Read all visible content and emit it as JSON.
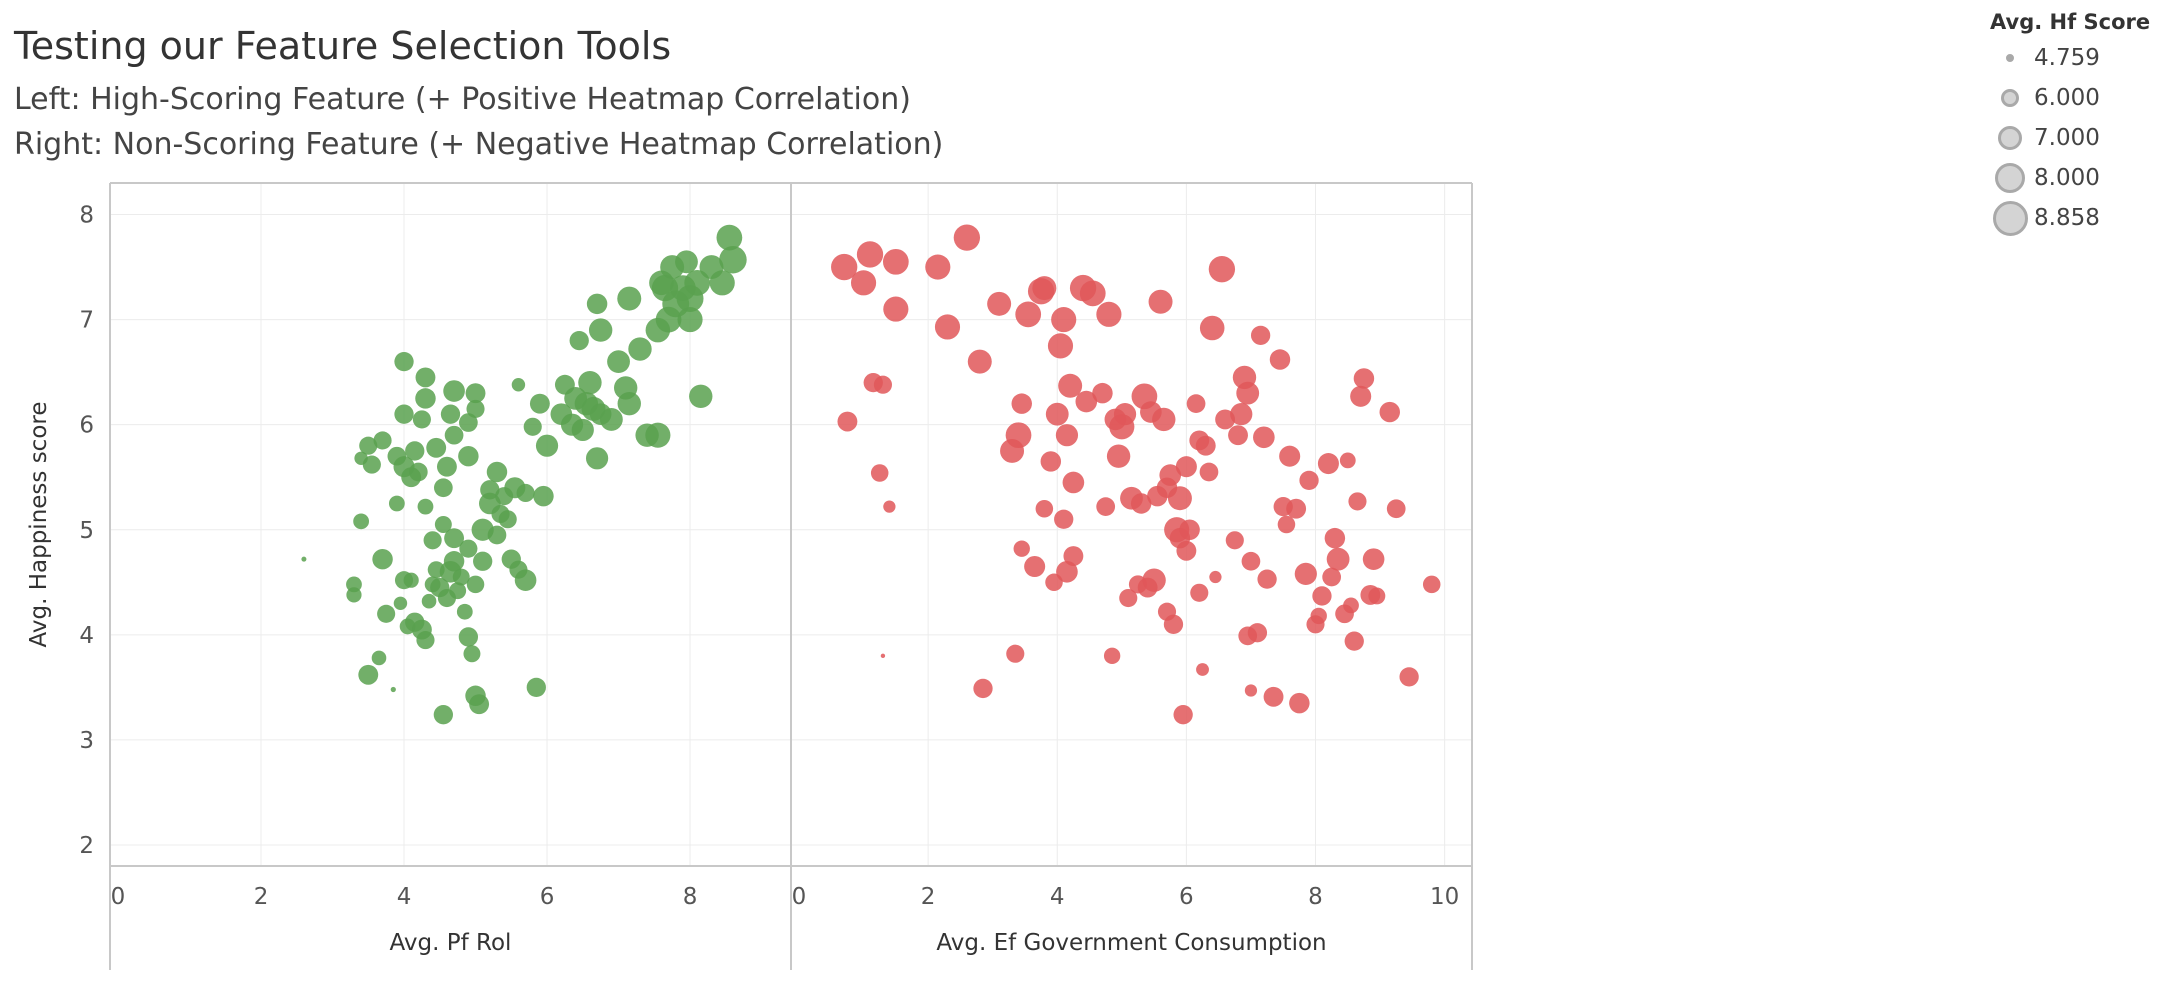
{
  "title": "Testing our Feature Selection Tools",
  "subtitle_left": "Left: High-Scoring Feature (+ Positive Heatmap Correlation)",
  "subtitle_right": "Right: Non-Scoring Feature (+ Negative Heatmap Correlation)",
  "legend": {
    "title": "Avg. Hf Score",
    "items": [
      {
        "label": "4.759",
        "value": 4.759
      },
      {
        "label": "6.000",
        "value": 6.0
      },
      {
        "label": "7.000",
        "value": 7.0
      },
      {
        "label": "8.000",
        "value": 8.0
      },
      {
        "label": "8.858",
        "value": 8.858
      }
    ]
  },
  "colors": {
    "left": "#59a14f",
    "right": "#e15759",
    "legend_fill": "#d4d4d4",
    "legend_stroke": "#a9a9a9"
  },
  "chart_data": [
    {
      "type": "scatter",
      "panel": "left",
      "xlabel": "Avg. Pf Rol",
      "ylabel": "Avg. Happiness score",
      "xlim": [
        0,
        9.3
      ],
      "ylim": [
        1.8,
        8.3
      ],
      "xticks": [
        0,
        2,
        4,
        6,
        8
      ],
      "yticks": [
        2,
        3,
        4,
        5,
        6,
        7,
        8
      ],
      "size_field": "Avg. Hf Score",
      "points": [
        [
          2.6,
          4.72,
          4.76
        ],
        [
          3.3,
          4.48,
          6.6
        ],
        [
          3.3,
          4.38,
          6.5
        ],
        [
          3.4,
          5.08,
          6.6
        ],
        [
          3.5,
          3.62,
          7.3
        ],
        [
          3.65,
          3.78,
          6.4
        ],
        [
          3.7,
          4.72,
          7.4
        ],
        [
          3.75,
          4.2,
          7.0
        ],
        [
          3.85,
          3.48,
          4.8
        ],
        [
          3.95,
          4.3,
          6.2
        ],
        [
          4.0,
          4.52,
          7.0
        ],
        [
          4.05,
          4.08,
          6.6
        ],
        [
          4.1,
          4.52,
          6.5
        ],
        [
          4.15,
          4.12,
          7.2
        ],
        [
          4.25,
          4.05,
          7.3
        ],
        [
          4.3,
          3.95,
          7.0
        ],
        [
          4.35,
          4.32,
          6.4
        ],
        [
          4.4,
          4.48,
          6.6
        ],
        [
          4.45,
          4.62,
          6.8
        ],
        [
          4.5,
          4.45,
          7.2
        ],
        [
          4.55,
          3.24,
          7.2
        ],
        [
          4.6,
          4.35,
          7.0
        ],
        [
          4.65,
          4.6,
          7.6
        ],
        [
          4.7,
          4.7,
          7.4
        ],
        [
          4.75,
          4.42,
          6.8
        ],
        [
          4.8,
          4.55,
          6.8
        ],
        [
          4.85,
          4.22,
          6.6
        ],
        [
          4.9,
          3.98,
          7.2
        ],
        [
          4.95,
          3.82,
          6.8
        ],
        [
          5.0,
          3.42,
          7.4
        ],
        [
          5.05,
          3.34,
          7.3
        ],
        [
          5.0,
          4.48,
          6.9
        ],
        [
          5.1,
          4.7,
          7.2
        ],
        [
          4.9,
          4.82,
          7.0
        ],
        [
          4.7,
          4.92,
          7.3
        ],
        [
          4.55,
          5.05,
          6.8
        ],
        [
          4.4,
          4.9,
          7.0
        ],
        [
          4.3,
          5.22,
          6.6
        ],
        [
          3.55,
          5.62,
          7.0
        ],
        [
          3.4,
          5.68,
          6.2
        ],
        [
          3.5,
          5.8,
          7.0
        ],
        [
          3.7,
          5.85,
          7.0
        ],
        [
          3.9,
          5.7,
          7.1
        ],
        [
          3.9,
          5.25,
          6.6
        ],
        [
          4.0,
          5.6,
          7.5
        ],
        [
          4.1,
          5.5,
          7.3
        ],
        [
          4.15,
          5.75,
          7.2
        ],
        [
          4.2,
          5.55,
          7.1
        ],
        [
          4.0,
          6.1,
          7.2
        ],
        [
          4.25,
          6.05,
          7.0
        ],
        [
          4.3,
          6.25,
          7.4
        ],
        [
          4.3,
          6.45,
          7.3
        ],
        [
          4.0,
          6.6,
          7.2
        ],
        [
          4.45,
          5.78,
          7.3
        ],
        [
          4.55,
          5.4,
          7.1
        ],
        [
          4.6,
          5.6,
          7.3
        ],
        [
          4.7,
          5.9,
          7.1
        ],
        [
          4.65,
          6.1,
          7.2
        ],
        [
          4.7,
          6.32,
          7.6
        ],
        [
          4.9,
          5.7,
          7.4
        ],
        [
          4.9,
          6.02,
          7.1
        ],
        [
          5.0,
          6.3,
          7.3
        ],
        [
          5.0,
          6.15,
          7.0
        ],
        [
          5.2,
          5.38,
          7.2
        ],
        [
          5.3,
          5.55,
          7.4
        ],
        [
          5.2,
          5.25,
          7.6
        ],
        [
          5.35,
          5.15,
          7.0
        ],
        [
          5.1,
          5.0,
          7.7
        ],
        [
          5.3,
          4.95,
          7.1
        ],
        [
          5.45,
          5.1,
          7.0
        ],
        [
          5.4,
          5.32,
          7.0
        ],
        [
          5.55,
          5.4,
          7.5
        ],
        [
          5.7,
          5.35,
          7.0
        ],
        [
          5.5,
          4.72,
          7.2
        ],
        [
          5.6,
          4.62,
          7.0
        ],
        [
          5.7,
          4.52,
          7.6
        ],
        [
          5.85,
          3.5,
          7.2
        ],
        [
          5.6,
          6.38,
          6.2
        ],
        [
          5.8,
          5.98,
          7.0
        ],
        [
          5.9,
          6.2,
          7.3
        ],
        [
          5.95,
          5.32,
          7.4
        ],
        [
          6.0,
          5.8,
          7.7
        ],
        [
          6.2,
          6.1,
          7.6
        ],
        [
          6.25,
          6.38,
          7.3
        ],
        [
          6.35,
          6.0,
          7.7
        ],
        [
          6.4,
          6.25,
          7.8
        ],
        [
          6.45,
          6.8,
          7.2
        ],
        [
          6.5,
          5.95,
          7.7
        ],
        [
          6.55,
          6.2,
          7.9
        ],
        [
          6.6,
          6.4,
          7.9
        ],
        [
          6.65,
          6.15,
          8.0
        ],
        [
          6.7,
          5.68,
          7.7
        ],
        [
          6.75,
          6.1,
          7.6
        ],
        [
          6.75,
          6.9,
          7.9
        ],
        [
          6.7,
          7.15,
          7.4
        ],
        [
          6.9,
          6.05,
          7.8
        ],
        [
          7.0,
          6.6,
          7.8
        ],
        [
          7.1,
          6.35,
          7.9
        ],
        [
          7.15,
          6.2,
          7.9
        ],
        [
          7.3,
          6.72,
          7.9
        ],
        [
          7.4,
          5.9,
          7.9
        ],
        [
          7.55,
          5.9,
          8.2
        ],
        [
          7.55,
          6.9,
          8.1
        ],
        [
          7.65,
          7.3,
          8.4
        ],
        [
          7.7,
          7.0,
          8.3
        ],
        [
          7.75,
          7.5,
          8.0
        ],
        [
          7.8,
          7.15,
          8.5
        ],
        [
          7.9,
          7.3,
          8.3
        ],
        [
          7.95,
          7.55,
          7.8
        ],
        [
          8.0,
          7.0,
          8.2
        ],
        [
          8.0,
          7.2,
          8.5
        ],
        [
          8.1,
          7.35,
          8.3
        ],
        [
          8.15,
          6.27,
          7.9
        ],
        [
          8.3,
          7.5,
          8.0
        ],
        [
          8.45,
          7.35,
          8.2
        ],
        [
          8.55,
          7.78,
          8.3
        ],
        [
          8.6,
          7.57,
          8.6
        ],
        [
          7.15,
          7.2,
          8.0
        ],
        [
          7.6,
          7.35,
          8.1
        ]
      ]
    },
    {
      "type": "scatter",
      "panel": "right",
      "xlabel": "Avg. Ef Government Consumption",
      "ylabel": "Avg. Happiness score",
      "xlim": [
        0,
        10.3
      ],
      "ylim": [
        1.8,
        8.3
      ],
      "xticks": [
        0,
        2,
        4,
        6,
        8,
        10
      ],
      "yticks": [
        2,
        3,
        4,
        5,
        6,
        7,
        8
      ],
      "size_field": "Avg. Hf Score",
      "points": [
        [
          0.7,
          7.5,
          8.4
        ],
        [
          1.0,
          7.35,
          8.2
        ],
        [
          1.1,
          7.62,
          8.4
        ],
        [
          1.5,
          7.1,
          8.2
        ],
        [
          1.5,
          7.55,
          8.3
        ],
        [
          0.75,
          6.03,
          7.3
        ],
        [
          1.15,
          6.4,
          7.2
        ],
        [
          1.3,
          6.38,
          7.0
        ],
        [
          1.25,
          5.54,
          6.9
        ],
        [
          1.4,
          5.22,
          6.0
        ],
        [
          2.15,
          7.5,
          8.2
        ],
        [
          2.3,
          6.93,
          8.2
        ],
        [
          2.6,
          7.78,
          8.4
        ],
        [
          2.8,
          6.6,
          8.0
        ],
        [
          3.1,
          7.15,
          8.0
        ],
        [
          3.3,
          5.75,
          8.0
        ],
        [
          3.4,
          5.9,
          8.3
        ],
        [
          3.45,
          6.2,
          7.4
        ],
        [
          3.45,
          4.82,
          6.7
        ],
        [
          3.55,
          7.05,
          8.3
        ],
        [
          3.65,
          4.65,
          7.5
        ],
        [
          3.75,
          7.27,
          8.4
        ],
        [
          3.8,
          5.2,
          6.9
        ],
        [
          3.8,
          7.3,
          8.0
        ],
        [
          3.9,
          5.65,
          7.4
        ],
        [
          3.95,
          4.5,
          6.9
        ],
        [
          4.0,
          6.1,
          7.8
        ],
        [
          4.05,
          6.75,
          8.2
        ],
        [
          4.1,
          7.0,
          8.2
        ],
        [
          4.15,
          5.9,
          7.7
        ],
        [
          4.15,
          4.6,
          7.6
        ],
        [
          4.2,
          6.37,
          8.0
        ],
        [
          4.25,
          5.45,
          7.6
        ],
        [
          4.25,
          4.75,
          7.3
        ],
        [
          4.1,
          5.1,
          7.2
        ],
        [
          4.4,
          7.3,
          8.4
        ],
        [
          4.45,
          6.22,
          7.6
        ],
        [
          4.55,
          7.25,
          8.3
        ],
        [
          4.7,
          6.3,
          7.4
        ],
        [
          4.75,
          5.22,
          7.1
        ],
        [
          4.8,
          7.05,
          8.2
        ],
        [
          4.85,
          3.8,
          6.7
        ],
        [
          4.9,
          6.05,
          7.6
        ],
        [
          4.95,
          5.7,
          7.9
        ],
        [
          5.0,
          5.98,
          8.2
        ],
        [
          5.05,
          6.1,
          7.7
        ],
        [
          5.1,
          4.35,
          7.0
        ],
        [
          5.15,
          5.3,
          7.8
        ],
        [
          5.25,
          4.48,
          7.0
        ],
        [
          5.3,
          5.25,
          7.4
        ],
        [
          5.35,
          6.27,
          8.3
        ],
        [
          5.4,
          4.45,
          7.3
        ],
        [
          5.45,
          6.12,
          7.6
        ],
        [
          5.5,
          4.52,
          7.9
        ],
        [
          5.55,
          5.32,
          7.4
        ],
        [
          5.6,
          7.17,
          8.0
        ],
        [
          5.65,
          6.05,
          7.9
        ],
        [
          5.7,
          5.4,
          7.4
        ],
        [
          5.7,
          4.22,
          7.0
        ],
        [
          5.75,
          5.52,
          7.6
        ],
        [
          5.8,
          4.1,
          7.2
        ],
        [
          5.85,
          5.0,
          8.2
        ],
        [
          5.9,
          5.3,
          8.0
        ],
        [
          5.9,
          4.92,
          7.4
        ],
        [
          5.95,
          3.24,
          7.2
        ],
        [
          6.0,
          5.6,
          7.5
        ],
        [
          6.0,
          4.8,
          7.3
        ],
        [
          6.05,
          5.0,
          7.4
        ],
        [
          6.15,
          6.2,
          7.1
        ],
        [
          6.2,
          5.85,
          7.3
        ],
        [
          6.2,
          4.4,
          7.0
        ],
        [
          6.25,
          3.67,
          6.1
        ],
        [
          6.3,
          5.8,
          7.3
        ],
        [
          6.35,
          5.55,
          7.1
        ],
        [
          6.4,
          6.92,
          8.1
        ],
        [
          6.45,
          4.55,
          6.0
        ],
        [
          6.55,
          7.48,
          8.4
        ],
        [
          6.6,
          6.05,
          7.3
        ],
        [
          6.75,
          4.9,
          7.0
        ],
        [
          6.8,
          5.9,
          7.3
        ],
        [
          6.85,
          6.1,
          7.7
        ],
        [
          6.9,
          6.45,
          7.9
        ],
        [
          6.95,
          6.3,
          7.8
        ],
        [
          7.0,
          4.7,
          7.1
        ],
        [
          6.95,
          3.99,
          7.1
        ],
        [
          7.0,
          3.47,
          6.0
        ],
        [
          7.1,
          4.02,
          7.2
        ],
        [
          7.15,
          6.85,
          7.2
        ],
        [
          7.2,
          5.88,
          7.6
        ],
        [
          7.25,
          4.53,
          7.2
        ],
        [
          7.35,
          3.41,
          7.3
        ],
        [
          7.45,
          6.62,
          7.4
        ],
        [
          7.5,
          5.22,
          7.2
        ],
        [
          7.55,
          5.05,
          6.9
        ],
        [
          7.6,
          5.7,
          7.5
        ],
        [
          7.7,
          5.2,
          7.3
        ],
        [
          7.75,
          3.35,
          7.4
        ],
        [
          7.85,
          4.58,
          7.7
        ],
        [
          7.9,
          5.47,
          7.2
        ],
        [
          8.0,
          4.1,
          7.0
        ],
        [
          8.05,
          4.18,
          6.7
        ],
        [
          8.1,
          4.37,
          7.2
        ],
        [
          8.2,
          5.63,
          7.5
        ],
        [
          8.25,
          4.55,
          7.1
        ],
        [
          8.3,
          4.92,
          7.4
        ],
        [
          8.35,
          4.72,
          7.8
        ],
        [
          8.45,
          4.2,
          7.1
        ],
        [
          8.5,
          5.66,
          6.6
        ],
        [
          8.55,
          4.28,
          6.6
        ],
        [
          8.6,
          3.94,
          7.2
        ],
        [
          8.65,
          5.27,
          7.0
        ],
        [
          8.7,
          6.27,
          7.5
        ],
        [
          8.75,
          6.44,
          7.4
        ],
        [
          8.85,
          4.38,
          7.3
        ],
        [
          8.9,
          4.72,
          7.6
        ],
        [
          8.95,
          4.37,
          6.8
        ],
        [
          9.15,
          6.12,
          7.4
        ],
        [
          9.25,
          5.2,
          7.1
        ],
        [
          9.45,
          3.6,
          7.2
        ],
        [
          9.8,
          4.48,
          6.9
        ],
        [
          1.3,
          3.8,
          0
        ],
        [
          2.85,
          3.49,
          7.2
        ],
        [
          3.35,
          3.82,
          7.0
        ]
      ]
    }
  ]
}
